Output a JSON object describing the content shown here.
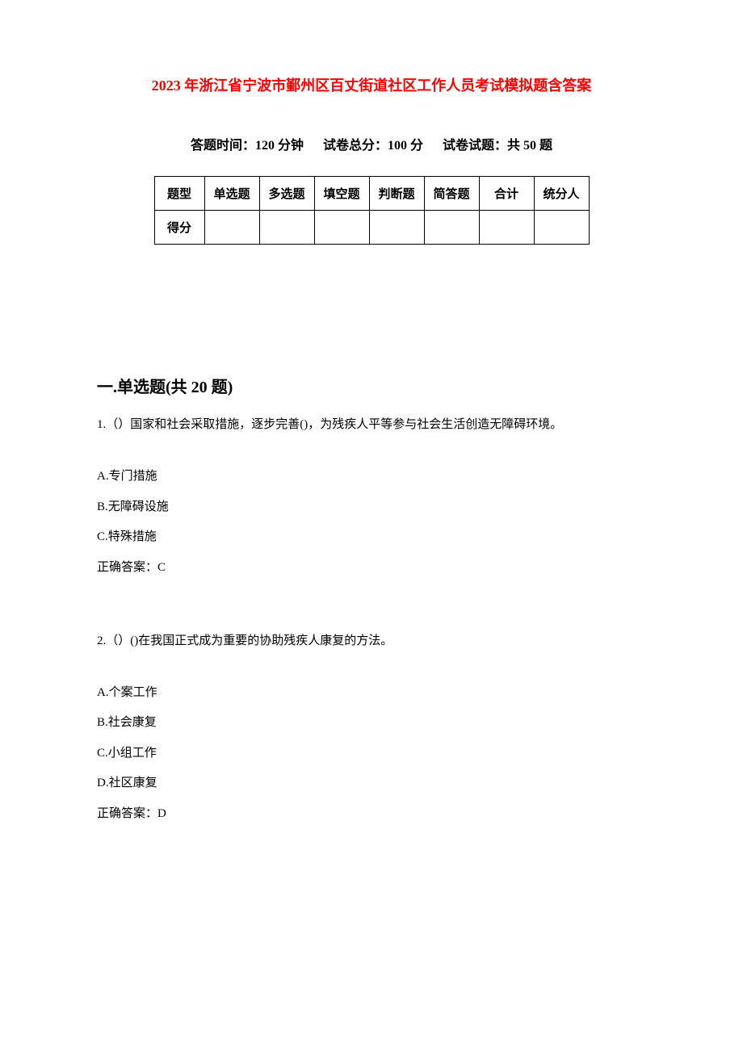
{
  "title": "2023 年浙江省宁波市鄞州区百丈街道社区工作人员考试模拟题含答案",
  "title_color": "#ff0000",
  "title_fontsize": 18,
  "body_fontsize": 15,
  "section_fontsize": 20,
  "exam_info": {
    "time_label": "答题时间：120 分钟",
    "total_score_label": "试卷总分：100 分",
    "question_count_label": "试卷试题：共 50 题"
  },
  "score_table": {
    "row1": {
      "header": "题型",
      "cols": [
        "单选题",
        "多选题",
        "填空题",
        "判断题",
        "简答题",
        "合计",
        "统分人"
      ]
    },
    "row2": {
      "header": "得分",
      "cols": [
        "",
        "",
        "",
        "",
        "",
        "",
        ""
      ]
    },
    "border_color": "#000000"
  },
  "section1_title": "一.单选题(共 20 题)",
  "q1": {
    "text": "1.（）国家和社会采取措施，逐步完善()，为残疾人平等参与社会生活创造无障碍环境。",
    "optA": "A.专门措施",
    "optB": "B.无障碍设施",
    "optC": "C.特殊措施",
    "answer": "正确答案：C"
  },
  "q2": {
    "text": "2.（）()在我国正式成为重要的协助残疾人康复的方法。",
    "optA": "A.个案工作",
    "optB": "B.社会康复",
    "optC": "C.小组工作",
    "optD": "D.社区康复",
    "answer": "正确答案：D"
  },
  "colors": {
    "background": "#ffffff",
    "text": "#000000"
  }
}
